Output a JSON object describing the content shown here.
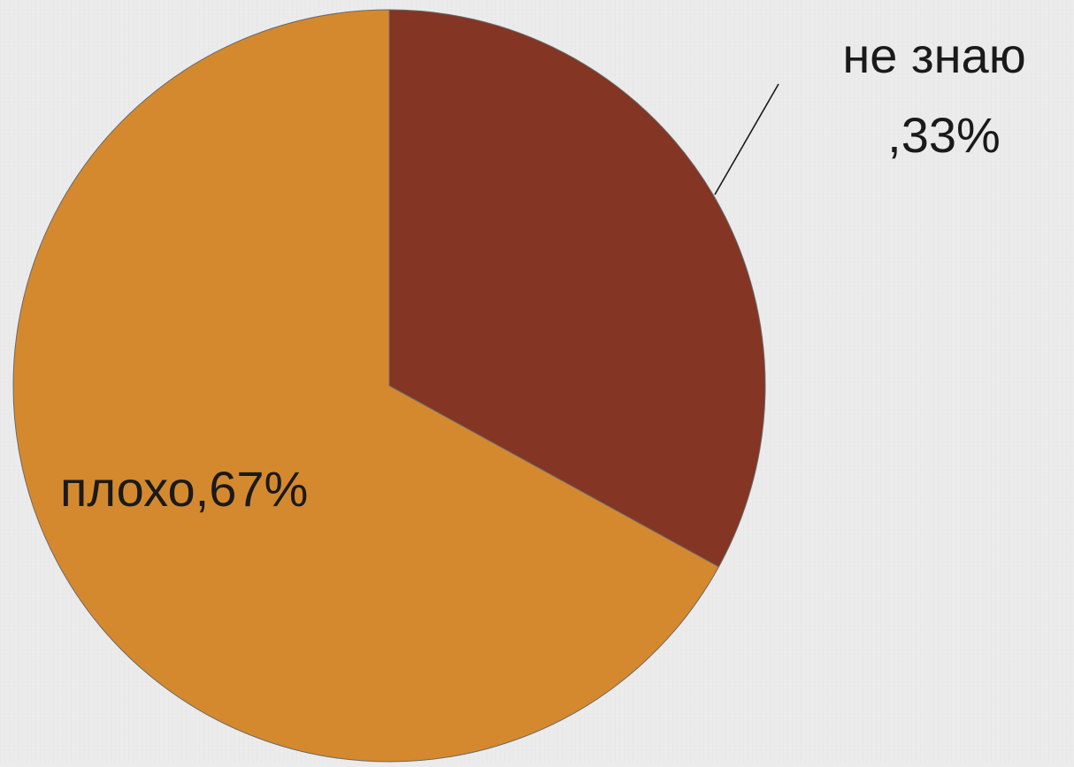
{
  "chart_data": {
    "type": "pie",
    "categories": [
      "не знаю",
      "плохо"
    ],
    "values": [
      33,
      67
    ],
    "unit": "%",
    "colors": [
      "#843523",
      "#d5892e"
    ],
    "labels": {
      "slice_1_line_1": "не знаю",
      "slice_1_line_2": ",33%",
      "slice_2": "плохо,67%"
    },
    "start_angle_deg": 0,
    "direction": "clockwise",
    "legend": "none"
  }
}
